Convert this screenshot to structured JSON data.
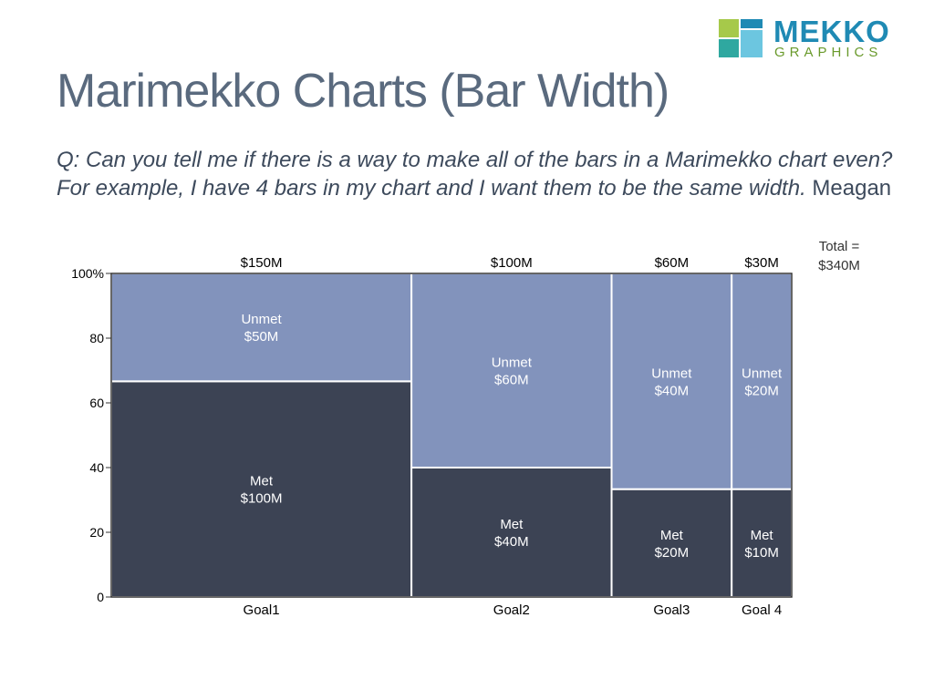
{
  "slide": {
    "title": "Marimekko Charts (Bar Width)",
    "question": "Q: Can you tell me if there is a way to make all of the bars in a Marimekko chart even? For example, I have 4 bars in my chart and I want them to be the same width.",
    "asker": "Meagan"
  },
  "logo": {
    "word1": "MEKKO",
    "word2": "GRAPHICS",
    "colors": [
      "#a6c94a",
      "#1f8ab4",
      "#6cc6e0",
      "#2fa8a0"
    ]
  },
  "chart_data": {
    "type": "marimekko",
    "categories": [
      "Goal1",
      "Goal2",
      "Goal3",
      "Goal 4"
    ],
    "category_totals": [
      150,
      100,
      60,
      30
    ],
    "category_total_labels": [
      "$150M",
      "$100M",
      "$60M",
      "$30M"
    ],
    "total_label_line1": "Total =",
    "total_label_line2": "$340M",
    "series": [
      {
        "name": "Met",
        "values": [
          100,
          40,
          20,
          10
        ],
        "value_labels": [
          "$100M",
          "$40M",
          "$20M",
          "$10M"
        ],
        "color": "#3c4354"
      },
      {
        "name": "Unmet",
        "values": [
          50,
          60,
          40,
          20
        ],
        "value_labels": [
          "$50M",
          "$60M",
          "$40M",
          "$20M"
        ],
        "color": "#8293bc"
      }
    ],
    "ylim": [
      0,
      100
    ],
    "yticks": [
      0,
      20,
      40,
      60,
      80,
      100
    ],
    "ytick_labels": [
      "0",
      "20",
      "40",
      "60",
      "80",
      "100%"
    ]
  }
}
